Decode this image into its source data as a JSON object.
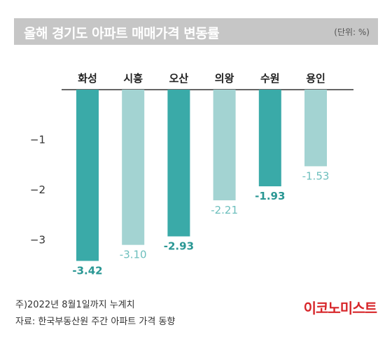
{
  "header": {
    "title": "올해 경기도 아파트 매매가격 변동률",
    "unit": "(단위: %)"
  },
  "chart_data": {
    "type": "bar",
    "title": "올해 경기도 아파트 매매가격 변동률",
    "unit": "(단위: %)",
    "categories": [
      "화성",
      "시흥",
      "오산",
      "의왕",
      "수원",
      "용인"
    ],
    "values": [
      -3.42,
      -3.1,
      -2.93,
      -2.21,
      -1.93,
      -1.53
    ],
    "value_labels": [
      "-3.42",
      "-3.10",
      "-2.93",
      "-2.21",
      "-1.93",
      "-1.53"
    ],
    "bar_colors": [
      "#3aaaa8",
      "#a3d3d2",
      "#3aaaa8",
      "#a3d3d2",
      "#3aaaa8",
      "#a3d3d2"
    ],
    "label_colors": [
      "#2a9794",
      "#6dbfbd",
      "#2a9794",
      "#6dbfbd",
      "#2a9794",
      "#6dbfbd"
    ],
    "y_ticks": [
      -1,
      -2,
      -3
    ],
    "y_tick_labels": [
      "−1",
      "−2",
      "−3"
    ],
    "ylim": [
      -3.6,
      0
    ],
    "category_position": "top",
    "grid": false
  },
  "footer": {
    "note1": "주)2022년 8월1일까지 누계치",
    "note2": "자료: 한국부동산원 주간 아파트 가격 동향",
    "brand": "이코노미스트"
  },
  "colors": {
    "brand": "#d7262a",
    "title_bar": "#c6c6c6"
  }
}
